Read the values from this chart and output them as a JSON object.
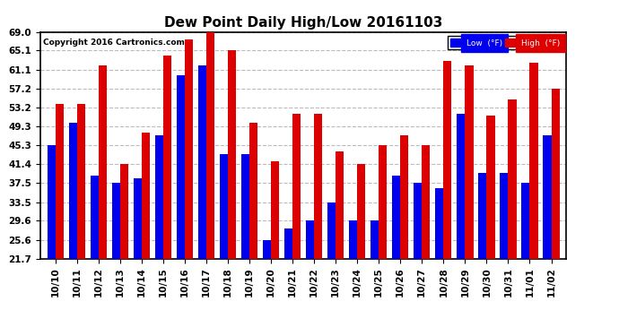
{
  "title": "Dew Point Daily High/Low 20161103",
  "copyright": "Copyright 2016 Cartronics.com",
  "categories": [
    "10/10",
    "10/11",
    "10/12",
    "10/13",
    "10/14",
    "10/15",
    "10/16",
    "10/17",
    "10/18",
    "10/19",
    "10/20",
    "10/21",
    "10/22",
    "10/23",
    "10/24",
    "10/25",
    "10/26",
    "10/27",
    "10/28",
    "10/29",
    "10/30",
    "10/31",
    "11/01",
    "11/02"
  ],
  "low_values": [
    45.3,
    50.0,
    39.0,
    37.5,
    38.5,
    47.5,
    60.0,
    62.0,
    43.5,
    43.5,
    25.5,
    28.0,
    29.6,
    33.5,
    29.6,
    29.6,
    39.0,
    37.5,
    36.5,
    52.0,
    39.5,
    39.5,
    37.5,
    47.5
  ],
  "high_values": [
    54.0,
    54.0,
    62.0,
    41.4,
    48.0,
    64.0,
    67.5,
    69.0,
    65.1,
    50.0,
    42.0,
    52.0,
    52.0,
    44.0,
    41.4,
    45.3,
    47.5,
    45.3,
    63.0,
    62.0,
    51.5,
    55.0,
    62.5,
    57.2
  ],
  "low_color": "#0000ee",
  "high_color": "#dd0000",
  "bg_color": "#ffffff",
  "grid_color": "#bbbbbb",
  "yticks": [
    21.7,
    25.6,
    29.6,
    33.5,
    37.5,
    41.4,
    45.3,
    49.3,
    53.2,
    57.2,
    61.1,
    65.1,
    69.0
  ],
  "ymin": 21.7,
  "ymax": 69.0,
  "bar_width": 0.38,
  "title_fontsize": 11,
  "tick_fontsize": 7.5
}
